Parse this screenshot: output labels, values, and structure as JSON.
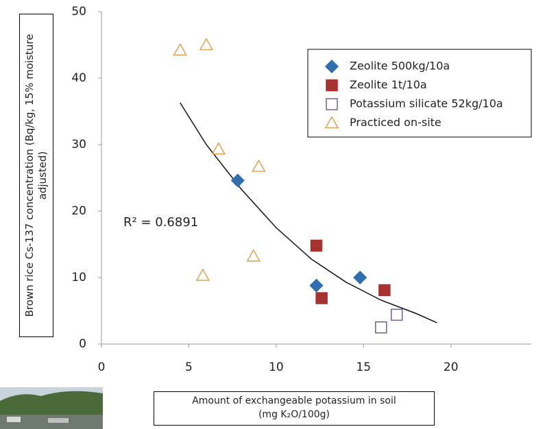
{
  "chart_data": {
    "type": "scatter",
    "x_label": "Amount of exchangeable potassium in soil (mg K₂O/100g)",
    "y_label": "Brown rice Cs-137 concentration (Bq/kg, 15% moisture adjusted)",
    "annotation": "R² = 0.6891",
    "xlim": [
      0,
      24.6
    ],
    "xticks": [
      0,
      5,
      10,
      15,
      20
    ],
    "ylim": [
      0,
      50
    ],
    "yticks": [
      0,
      10,
      20,
      30,
      40,
      50
    ],
    "legend": "upper right",
    "series": [
      {
        "name": "Zeolite 500kg/10a",
        "color": "#2f6fb0",
        "marker": "diamond",
        "filled": true,
        "x": [
          7.8,
          12.3,
          14.8
        ],
        "values": [
          24.6,
          8.8,
          10.0
        ]
      },
      {
        "name": "Zeolite 1t/10a",
        "color": "#a83232",
        "marker": "square",
        "filled": true,
        "x": [
          12.3,
          12.6,
          16.2
        ],
        "values": [
          14.8,
          6.9,
          8.1
        ]
      },
      {
        "name": "Potassium silicate 52kg/10a",
        "color": "#7a5a9a",
        "marker": "square",
        "filled": false,
        "x": [
          16.0,
          16.9
        ],
        "values": [
          2.5,
          4.4
        ]
      },
      {
        "name": "Practiced on-site",
        "color": "#e0a050",
        "marker": "triangle",
        "filled": false,
        "x": [
          4.5,
          6.0,
          6.7,
          9.0,
          8.7,
          5.8
        ],
        "values": [
          44.2,
          45.0,
          29.3,
          26.7,
          13.2,
          10.3
        ]
      }
    ],
    "trend": {
      "color": "#111",
      "x": [
        4.5,
        6,
        8,
        10,
        12,
        14,
        16,
        18,
        19.2
      ],
      "values": [
        36.3,
        30.0,
        23.3,
        17.5,
        12.8,
        9.3,
        6.6,
        4.6,
        3.2
      ]
    }
  }
}
